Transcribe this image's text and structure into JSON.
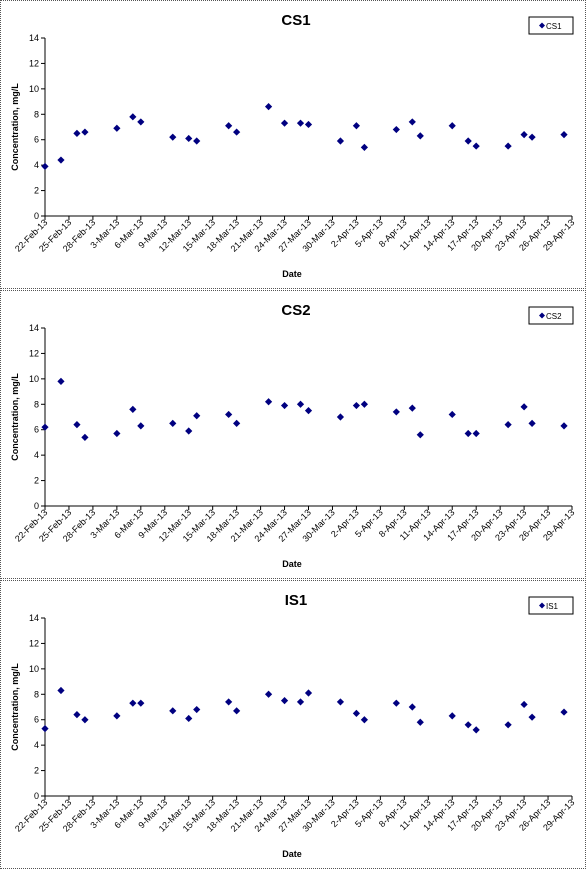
{
  "chart_data": [
    {
      "type": "scatter",
      "title": "CS1",
      "xlabel": "Date",
      "ylabel": "Concentration, mg/L",
      "ylim": [
        0,
        14
      ],
      "yticks": [
        0,
        2,
        4,
        6,
        8,
        10,
        12,
        14
      ],
      "x_ticks": [
        "22-Feb-13",
        "25-Feb-13",
        "28-Feb-13",
        "3-Mar-13",
        "6-Mar-13",
        "9-Mar-13",
        "12-Mar-13",
        "15-Mar-13",
        "18-Mar-13",
        "21-Mar-13",
        "24-Mar-13",
        "27-Mar-13",
        "30-Mar-13",
        "2-Apr-13",
        "5-Apr-13",
        "8-Apr-13",
        "11-Apr-13",
        "14-Apr-13",
        "17-Apr-13",
        "20-Apr-13",
        "23-Apr-13",
        "26-Apr-13",
        "29-Apr-13"
      ],
      "xlim": [
        "22-Feb-13",
        "29-Apr-13"
      ],
      "grid": false,
      "legend_position": "top-right",
      "marker_color": "#000080",
      "series": [
        {
          "name": "CS1",
          "points": [
            {
              "x": "22-Feb-13",
              "y": 3.9
            },
            {
              "x": "24-Feb-13",
              "y": 4.4
            },
            {
              "x": "26-Feb-13",
              "y": 6.5
            },
            {
              "x": "27-Feb-13",
              "y": 6.6
            },
            {
              "x": "3-Mar-13",
              "y": 6.9
            },
            {
              "x": "5-Mar-13",
              "y": 7.8
            },
            {
              "x": "6-Mar-13",
              "y": 7.4
            },
            {
              "x": "10-Mar-13",
              "y": 6.2
            },
            {
              "x": "12-Mar-13",
              "y": 6.1
            },
            {
              "x": "13-Mar-13",
              "y": 5.9
            },
            {
              "x": "17-Mar-13",
              "y": 7.1
            },
            {
              "x": "18-Mar-13",
              "y": 6.6
            },
            {
              "x": "22-Mar-13",
              "y": 8.6
            },
            {
              "x": "24-Mar-13",
              "y": 7.3
            },
            {
              "x": "26-Mar-13",
              "y": 7.3
            },
            {
              "x": "27-Mar-13",
              "y": 7.2
            },
            {
              "x": "31-Mar-13",
              "y": 5.9
            },
            {
              "x": "2-Apr-13",
              "y": 7.1
            },
            {
              "x": "3-Apr-13",
              "y": 5.4
            },
            {
              "x": "7-Apr-13",
              "y": 6.8
            },
            {
              "x": "9-Apr-13",
              "y": 7.4
            },
            {
              "x": "10-Apr-13",
              "y": 6.3
            },
            {
              "x": "14-Apr-13",
              "y": 7.1
            },
            {
              "x": "16-Apr-13",
              "y": 5.9
            },
            {
              "x": "17-Apr-13",
              "y": 5.5
            },
            {
              "x": "21-Apr-13",
              "y": 5.5
            },
            {
              "x": "23-Apr-13",
              "y": 6.4
            },
            {
              "x": "24-Apr-13",
              "y": 6.2
            },
            {
              "x": "28-Apr-13",
              "y": 6.4
            }
          ]
        }
      ]
    },
    {
      "type": "scatter",
      "title": "CS2",
      "xlabel": "Date",
      "ylabel": "Concentration, mg/L",
      "ylim": [
        0,
        14
      ],
      "yticks": [
        0,
        2,
        4,
        6,
        8,
        10,
        12,
        14
      ],
      "x_ticks": [
        "22-Feb-13",
        "25-Feb-13",
        "28-Feb-13",
        "3-Mar-13",
        "6-Mar-13",
        "9-Mar-13",
        "12-Mar-13",
        "15-Mar-13",
        "18-Mar-13",
        "21-Mar-13",
        "24-Mar-13",
        "27-Mar-13",
        "30-Mar-13",
        "2-Apr-13",
        "5-Apr-13",
        "8-Apr-13",
        "11-Apr-13",
        "14-Apr-13",
        "17-Apr-13",
        "20-Apr-13",
        "23-Apr-13",
        "26-Apr-13",
        "29-Apr-13"
      ],
      "xlim": [
        "22-Feb-13",
        "29-Apr-13"
      ],
      "grid": false,
      "legend_position": "top-right",
      "marker_color": "#000080",
      "series": [
        {
          "name": "CS2",
          "points": [
            {
              "x": "22-Feb-13",
              "y": 6.2
            },
            {
              "x": "24-Feb-13",
              "y": 9.8
            },
            {
              "x": "26-Feb-13",
              "y": 6.4
            },
            {
              "x": "27-Feb-13",
              "y": 5.4
            },
            {
              "x": "3-Mar-13",
              "y": 5.7
            },
            {
              "x": "5-Mar-13",
              "y": 7.6
            },
            {
              "x": "6-Mar-13",
              "y": 6.3
            },
            {
              "x": "10-Mar-13",
              "y": 6.5
            },
            {
              "x": "12-Mar-13",
              "y": 5.9
            },
            {
              "x": "13-Mar-13",
              "y": 7.1
            },
            {
              "x": "17-Mar-13",
              "y": 7.2
            },
            {
              "x": "18-Mar-13",
              "y": 6.5
            },
            {
              "x": "22-Mar-13",
              "y": 8.2
            },
            {
              "x": "24-Mar-13",
              "y": 7.9
            },
            {
              "x": "26-Mar-13",
              "y": 8.0
            },
            {
              "x": "27-Mar-13",
              "y": 7.5
            },
            {
              "x": "31-Mar-13",
              "y": 7.0
            },
            {
              "x": "2-Apr-13",
              "y": 7.9
            },
            {
              "x": "3-Apr-13",
              "y": 8.0
            },
            {
              "x": "7-Apr-13",
              "y": 7.4
            },
            {
              "x": "9-Apr-13",
              "y": 7.7
            },
            {
              "x": "10-Apr-13",
              "y": 5.6
            },
            {
              "x": "14-Apr-13",
              "y": 7.2
            },
            {
              "x": "16-Apr-13",
              "y": 5.7
            },
            {
              "x": "17-Apr-13",
              "y": 5.7
            },
            {
              "x": "21-Apr-13",
              "y": 6.4
            },
            {
              "x": "23-Apr-13",
              "y": 7.8
            },
            {
              "x": "24-Apr-13",
              "y": 6.5
            },
            {
              "x": "28-Apr-13",
              "y": 6.3
            }
          ]
        }
      ]
    },
    {
      "type": "scatter",
      "title": "IS1",
      "xlabel": "Date",
      "ylabel": "Concentration, mg/L",
      "ylim": [
        0,
        14
      ],
      "yticks": [
        0,
        2,
        4,
        6,
        8,
        10,
        12,
        14
      ],
      "x_ticks": [
        "22-Feb-13",
        "25-Feb-13",
        "28-Feb-13",
        "3-Mar-13",
        "6-Mar-13",
        "9-Mar-13",
        "12-Mar-13",
        "15-Mar-13",
        "18-Mar-13",
        "21-Mar-13",
        "24-Mar-13",
        "27-Mar-13",
        "30-Mar-13",
        "2-Apr-13",
        "5-Apr-13",
        "8-Apr-13",
        "11-Apr-13",
        "14-Apr-13",
        "17-Apr-13",
        "20-Apr-13",
        "23-Apr-13",
        "26-Apr-13",
        "29-Apr-13"
      ],
      "xlim": [
        "22-Feb-13",
        "29-Apr-13"
      ],
      "grid": false,
      "legend_position": "top-right",
      "marker_color": "#000080",
      "series": [
        {
          "name": "IS1",
          "points": [
            {
              "x": "22-Feb-13",
              "y": 5.3
            },
            {
              "x": "24-Feb-13",
              "y": 8.3
            },
            {
              "x": "26-Feb-13",
              "y": 6.4
            },
            {
              "x": "27-Feb-13",
              "y": 6.0
            },
            {
              "x": "3-Mar-13",
              "y": 6.3
            },
            {
              "x": "5-Mar-13",
              "y": 7.3
            },
            {
              "x": "6-Mar-13",
              "y": 7.3
            },
            {
              "x": "10-Mar-13",
              "y": 6.7
            },
            {
              "x": "12-Mar-13",
              "y": 6.1
            },
            {
              "x": "13-Mar-13",
              "y": 6.8
            },
            {
              "x": "17-Mar-13",
              "y": 7.4
            },
            {
              "x": "18-Mar-13",
              "y": 6.7
            },
            {
              "x": "22-Mar-13",
              "y": 8.0
            },
            {
              "x": "24-Mar-13",
              "y": 7.5
            },
            {
              "x": "26-Mar-13",
              "y": 7.4
            },
            {
              "x": "27-Mar-13",
              "y": 8.1
            },
            {
              "x": "31-Mar-13",
              "y": 7.4
            },
            {
              "x": "2-Apr-13",
              "y": 6.5
            },
            {
              "x": "3-Apr-13",
              "y": 6.0
            },
            {
              "x": "7-Apr-13",
              "y": 7.3
            },
            {
              "x": "9-Apr-13",
              "y": 7.0
            },
            {
              "x": "10-Apr-13",
              "y": 5.8
            },
            {
              "x": "14-Apr-13",
              "y": 6.3
            },
            {
              "x": "16-Apr-13",
              "y": 5.6
            },
            {
              "x": "17-Apr-13",
              "y": 5.2
            },
            {
              "x": "21-Apr-13",
              "y": 5.6
            },
            {
              "x": "23-Apr-13",
              "y": 7.2
            },
            {
              "x": "24-Apr-13",
              "y": 6.2
            },
            {
              "x": "28-Apr-13",
              "y": 6.6
            }
          ]
        }
      ]
    }
  ]
}
